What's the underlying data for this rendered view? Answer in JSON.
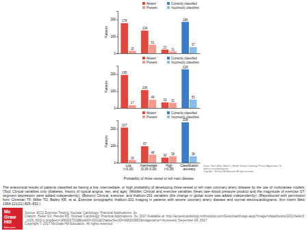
{
  "chart_data": [
    {
      "type": "bar",
      "y_label": "Patients",
      "categories": [
        "Low\n(<0.15)",
        "Intermediate\n(0.15–0.35)",
        "High\n(>0.35)",
        "Classification\naccuracy"
      ],
      "series": [
        {
          "name": "Absent",
          "color": "#e0483c",
          "values": [
            178,
            134,
            22,
            null
          ]
        },
        {
          "name": "Present",
          "color": "#f39a8f",
          "values": [
            15,
            51,
            11,
            null
          ]
        },
        {
          "name": "Correctly classified",
          "color": "#3a7cc6",
          "values": [
            null,
            null,
            null,
            185
          ]
        },
        {
          "name": "Incorrectly classified",
          "color": "#86bde9",
          "values": [
            null,
            null,
            null,
            37
          ]
        }
      ],
      "ylim": [
        0,
        250
      ],
      "yticks": [
        0,
        100,
        200
      ],
      "grid": false,
      "legend": "top-right",
      "data_labels": true,
      "tick_labels": "y"
    },
    {
      "type": "bar",
      "y_label": "Patients",
      "categories": [
        "Low\n(<0.15)",
        "Intermediate\n(0.15–0.35)",
        "High\n(>0.35)",
        "Classification\naccuracy"
      ],
      "series": [
        {
          "name": "Absent",
          "color": "#e0483c",
          "values": [
            195,
            106,
            33,
            null
          ]
        },
        {
          "name": "Present",
          "color": "#f39a8f",
          "values": [
            17,
            49,
            31,
            null
          ]
        },
        {
          "name": "Correctly classified",
          "color": "#3a7cc6",
          "values": [
            null,
            null,
            null,
            228
          ]
        },
        {
          "name": "Incorrectly classified",
          "color": "#86bde9",
          "values": [
            null,
            null,
            null,
            50
          ]
        }
      ],
      "ylim": [
        0,
        250
      ],
      "yticks": [
        0,
        100,
        200
      ],
      "grid": false,
      "legend": "top-right",
      "data_labels": true,
      "tick_labels": "y"
    },
    {
      "type": "bar",
      "y_label": "Patients",
      "x_label": "Probability of three-vessel or left main disease",
      "categories": [
        "Low\n(<0.15)",
        "Intermediate\n(0.15–0.35)",
        "High\n(>0.35)",
        "Classification\naccuracy"
      ],
      "series": [
        {
          "name": "Absent",
          "color": "#e0483c",
          "values": [
            207,
            97,
            30,
            null
          ]
        },
        {
          "name": "Present",
          "color": "#f39a8f",
          "values": [
            16,
            48,
            38,
            null
          ]
        },
        {
          "name": "Correctly classified",
          "color": "#3a7cc6",
          "values": [
            null,
            null,
            null,
            238
          ]
        },
        {
          "name": "Incorrectly classified",
          "color": "#86bde9",
          "values": [
            null,
            null,
            null,
            38
          ]
        }
      ],
      "ylim": [
        0,
        250
      ],
      "yticks": [
        0,
        100,
        200
      ],
      "grid": false,
      "legend": "top-right",
      "data_labels": true
    }
  ],
  "note": [
    "Source: Steve Heller, Robert C. Hendel: Nuclear Cardiology: Practical Applications, 3e",
    "www.accesscardiology.com",
    "Copyright © McGraw-Hill Education. All rights reserved."
  ],
  "caption": "The anatomical results of patients classified as having a low, intermediate, or high probability of developing three-vessel or left main coronary artery disease by the use of multivariate models. (Top) Clinical variables only (diabetes, history of typical angina, sex, and age). (Middle) Clinical and exercise variables (heart rate–blood pressure product and the magnitude of exercise ST-segment depression were added independently). (Bottom) Clinical, exercise, and thallium-201 variables (the change in global score was added independently). (Reproduced with permission from Christian TF, Miller TD, Bailey KR, et al. Exercise tomographic thallium-201 imaging in patients with severe coronary artery disease and normal electrocardiograms. Ann Intern Med. 1994;121(11):825–832.)",
  "source": "Source: ECG Exercise Testing, Nuclear Cardiology: Practical Applications, 3e",
  "citation": "Citation: Heller GV, Hendel RC. Nuclear Cardiology: Practical Applications, 3e; 2017 Available at: http://accesscardiology.mhmedical.com/DownloadImage.aspx?image=/data/books/2201/heller3_ch26_f003-1.png&sec=168203702&BookID=2201&ChapterSecID=168203682&imagename= Accessed: December 29, 2017",
  "copyright": "Copyright © 2017 McGraw-Hill Education. All rights reserved",
  "logo": [
    "Mc",
    "Graw",
    "Hill",
    "Education"
  ]
}
